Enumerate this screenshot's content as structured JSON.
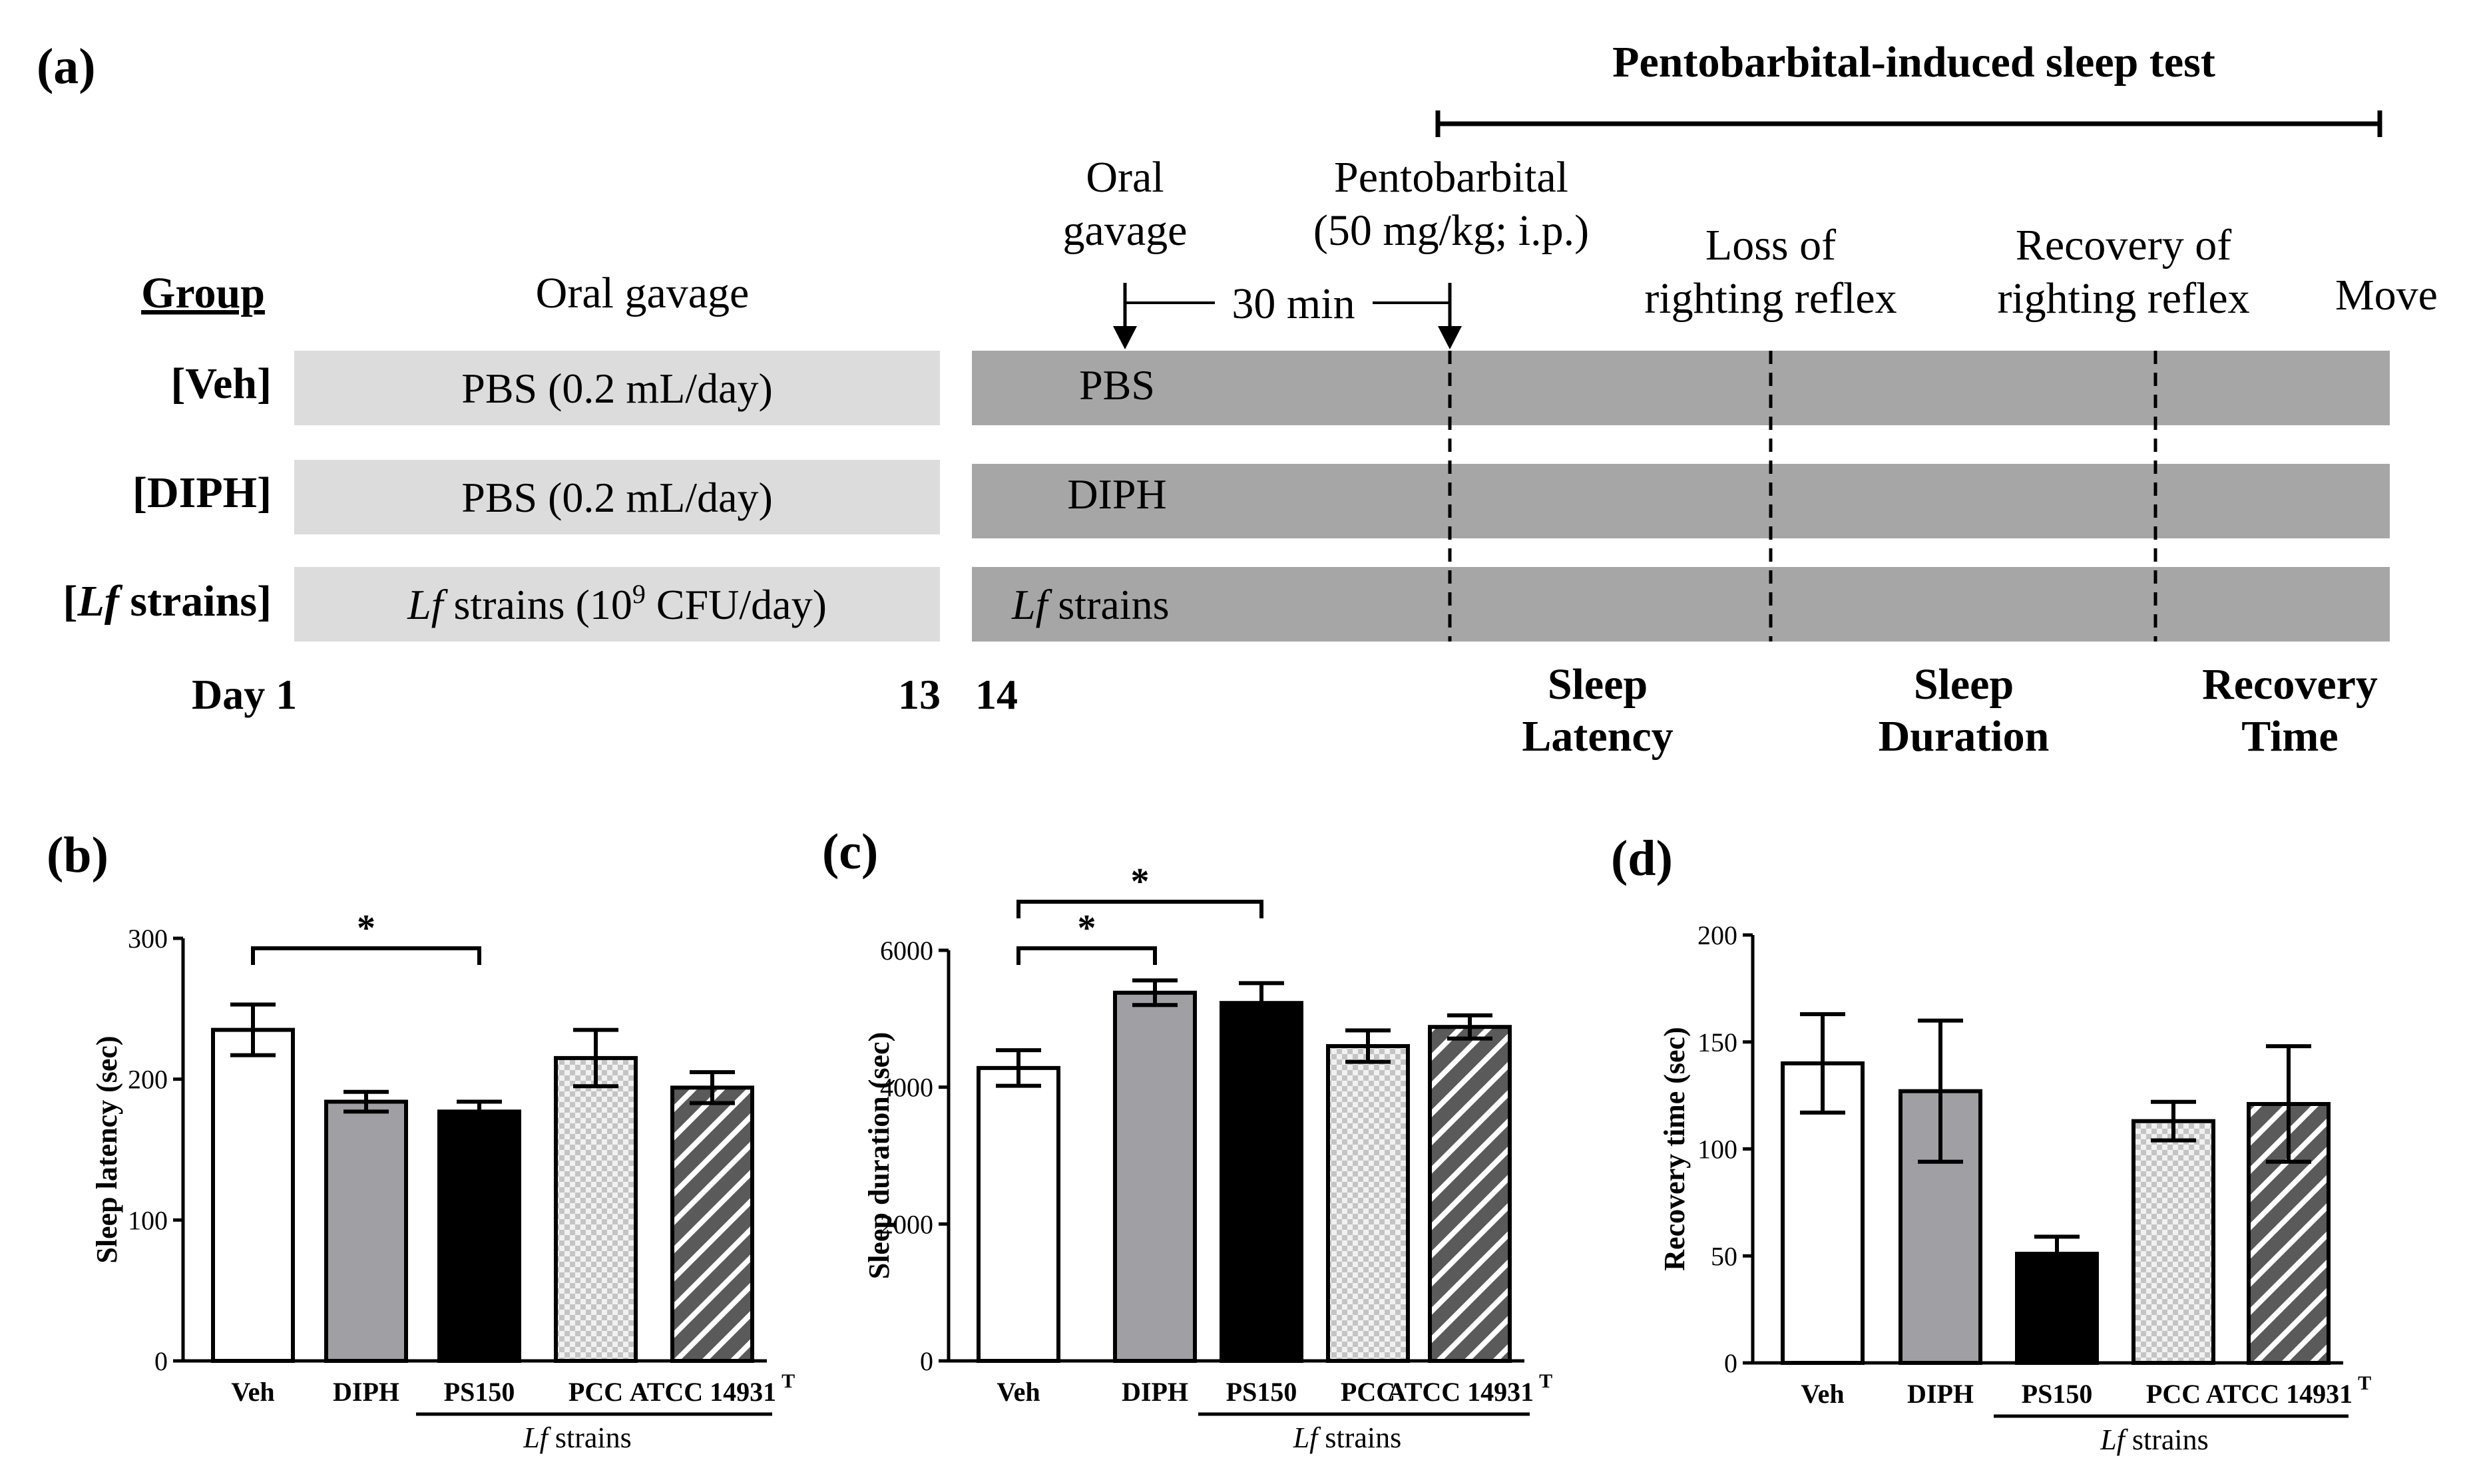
{
  "panel_a": {
    "label": "(a)",
    "test_title": "Pentobarbital-induced sleep test",
    "group_header": "Group",
    "oral_gavage_header": "Oral gavage",
    "rows": [
      {
        "group": "[Veh]",
        "left_text": "PBS (0.2 mL/day)",
        "right_text": "PBS"
      },
      {
        "group": "[DIPH]",
        "left_text": "PBS (0.2 mL/day)",
        "right_text": "DIPH"
      },
      {
        "group_pre": "[",
        "group_ital": "Lf",
        "group_post": " strains]",
        "left_ital": "Lf",
        "left_mid": " strains (10",
        "left_sup": "9",
        "left_post": " CFU/day)",
        "right_ital": "Lf",
        "right_post": " strains"
      }
    ],
    "events": {
      "oral_gavage_l1": "Oral",
      "oral_gavage_l2": "gavage",
      "interval": "30 min",
      "pento_l1": "Pentobarbital",
      "pento_l2": "(50 mg/kg; i.p.)",
      "loss_l1": "Loss of",
      "loss_l2": "righting reflex",
      "recovery_l1": "Recovery of",
      "recovery_l2": "righting reflex",
      "move": "Move"
    },
    "days": {
      "day1": "Day 1",
      "day13": "13",
      "day14": "14"
    },
    "phases": [
      {
        "l1": "Sleep",
        "l2": "Latency"
      },
      {
        "l1": "Sleep",
        "l2": "Duration"
      },
      {
        "l1": "Recovery",
        "l2": "Time"
      }
    ]
  },
  "chart_data": [
    {
      "panel": "(b)",
      "type": "bar",
      "categories": [
        "Veh",
        "DIPH",
        "PS150",
        "PCC",
        "ATCC 14931"
      ],
      "category_superscript": {
        "ATCC 14931": "T"
      },
      "group_label_italic": "Lf",
      "group_label_rest": " strains",
      "values": [
        235,
        184,
        177,
        215,
        194
      ],
      "errors": [
        18,
        7,
        7,
        20,
        11
      ],
      "ylabel": "Sleep latency (sec)",
      "ylim": [
        0,
        300
      ],
      "yticks": [
        0,
        100,
        200,
        300
      ],
      "ytick_labels": [
        "0",
        "100",
        "200",
        "300"
      ],
      "significance": [
        {
          "from": "Veh",
          "to": "PS150",
          "label": "*"
        }
      ]
    },
    {
      "panel": "(c)",
      "type": "bar",
      "categories": [
        "Veh",
        "DIPH",
        "PS150",
        "PCC",
        "ATCC 14931"
      ],
      "category_superscript": {
        "ATCC 14931": "T"
      },
      "group_label_italic": "Lf",
      "group_label_rest": " strains",
      "values": [
        4280,
        5380,
        5230,
        4600,
        4880
      ],
      "errors": [
        260,
        180,
        290,
        230,
        170
      ],
      "ylabel": "Sleep duration (sec)",
      "ylim": [
        0,
        6000
      ],
      "yticks": [
        0,
        2000,
        4000,
        6000
      ],
      "ytick_labels": [
        "0",
        "2000",
        "4000",
        "6000"
      ],
      "significance": [
        {
          "from": "Veh",
          "to": "DIPH",
          "label": "*"
        },
        {
          "from": "Veh",
          "to": "PS150",
          "label": "*"
        }
      ]
    },
    {
      "panel": "(d)",
      "type": "bar",
      "categories": [
        "Veh",
        "DIPH",
        "PS150",
        "PCC",
        "ATCC 14931"
      ],
      "category_superscript": {
        "ATCC 14931": "T"
      },
      "group_label_italic": "Lf",
      "group_label_rest": " strains",
      "values": [
        140,
        127,
        51,
        113,
        121
      ],
      "errors": [
        23,
        33,
        8,
        9,
        27
      ],
      "ylabel": "Recovery time (sec)",
      "ylim": [
        0,
        200
      ],
      "yticks": [
        0,
        50,
        100,
        150,
        200
      ],
      "ytick_labels": [
        "0",
        "50",
        "100",
        "150",
        "200"
      ],
      "significance": []
    }
  ],
  "colors": {
    "light_box": "#dcdcdc",
    "dark_box": "#a6a6a6",
    "bar_veh": "#ffffff",
    "bar_diph": "#a0a0a4",
    "bar_ps150": "#000000",
    "bar_pcc": "#cfcfcf",
    "bar_atcc": "#555555"
  },
  "icons": {
    "arrow": "down-arrow-icon",
    "pcc_fill": "checker-pattern",
    "atcc_fill": "diagonal-hatch-pattern"
  }
}
